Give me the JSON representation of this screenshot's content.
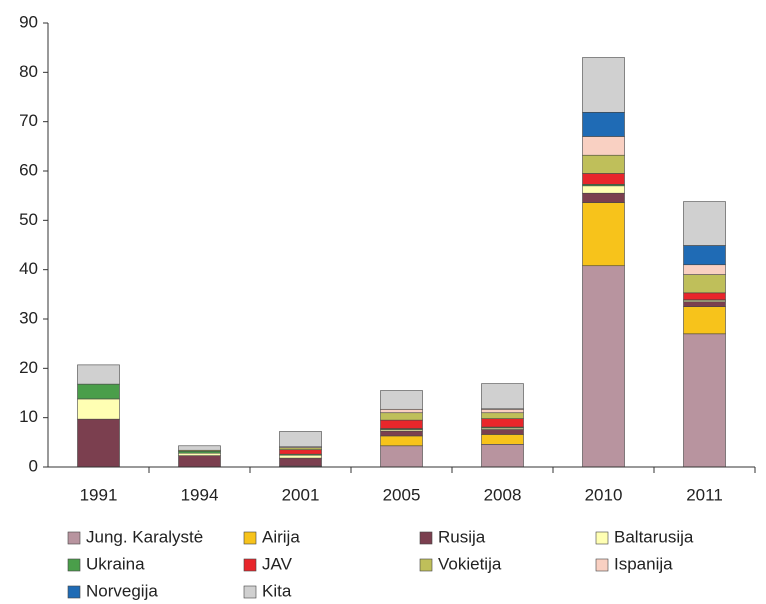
{
  "chart_data": {
    "type": "stacked_bar",
    "categories": [
      "1991",
      "1994",
      "2001",
      "2005",
      "2008",
      "2010",
      "2011"
    ],
    "series": [
      {
        "name": "Jung. Karalystė",
        "color": "#b8949f",
        "values": [
          0,
          0,
          0.2,
          4.3,
          4.6,
          40.8,
          27.0
        ]
      },
      {
        "name": "Airija",
        "color": "#f7c31b",
        "values": [
          0,
          0,
          0,
          2.0,
          2.0,
          12.8,
          5.5
        ]
      },
      {
        "name": "Rusija",
        "color": "#7b3f4f",
        "values": [
          9.7,
          2.3,
          1.6,
          1.0,
          1.0,
          1.9,
          1.0
        ]
      },
      {
        "name": "Baltarusija",
        "color": "#ffffb3",
        "values": [
          4.1,
          0.5,
          0.6,
          0.3,
          0.3,
          1.5,
          0.3
        ]
      },
      {
        "name": "Ukraina",
        "color": "#4a9e4a",
        "values": [
          3.0,
          0.4,
          0.2,
          0.2,
          0.2,
          0.3,
          0.1
        ]
      },
      {
        "name": "JAV",
        "color": "#e8262b",
        "values": [
          0,
          0,
          0.9,
          1.7,
          1.7,
          2.2,
          1.4
        ]
      },
      {
        "name": "Vokietija",
        "color": "#bfbf5a",
        "values": [
          0,
          0.2,
          0.4,
          1.5,
          1.2,
          3.7,
          3.7
        ]
      },
      {
        "name": "Ispanija",
        "color": "#f9d0c2",
        "values": [
          0,
          0,
          0.2,
          0.7,
          0.7,
          3.8,
          2.0
        ]
      },
      {
        "name": "Norvegija",
        "color": "#1f6bb5",
        "values": [
          0,
          0,
          0,
          0,
          0.1,
          4.9,
          3.9
        ]
      },
      {
        "name": "Kita",
        "color": "#d0d0d0",
        "values": [
          3.9,
          0.9,
          3.1,
          3.8,
          5.1,
          11.1,
          8.9
        ]
      }
    ],
    "ylim": [
      0,
      90
    ],
    "yticks": [
      0,
      10,
      20,
      30,
      40,
      50,
      60,
      70,
      80,
      90
    ],
    "legend": "bottom"
  }
}
